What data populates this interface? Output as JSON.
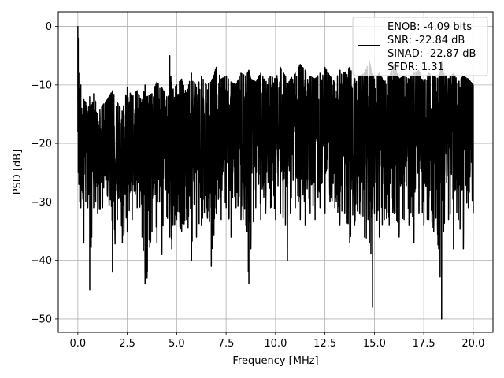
{
  "chart_data": {
    "type": "line",
    "title": "",
    "xlabel": "Frequency [MHz]",
    "ylabel": "PSD [dB]",
    "xlim": [
      -0.99,
      21.0
    ],
    "ylim": [
      -52.3,
      2.5
    ],
    "xticks": [
      0.0,
      2.5,
      5.0,
      7.5,
      10.0,
      12.5,
      15.0,
      17.5,
      20.0
    ],
    "xtick_labels": [
      "0.0",
      "2.5",
      "5.0",
      "7.5",
      "10.0",
      "12.5",
      "15.0",
      "17.5",
      "20.0"
    ],
    "yticks": [
      0,
      -10,
      -20,
      -30,
      -40,
      -50
    ],
    "ytick_labels": [
      "0",
      "−10",
      "−20",
      "−30",
      "−40",
      "−50"
    ],
    "grid": true,
    "legend_position": "top-right",
    "legend_entries": [
      "ENOB: -4.09 bits",
      "SNR: -22.84 dB",
      "SINAD: -22.87 dB",
      "SFDR: 1.31"
    ],
    "series": [
      {
        "color": "#000000",
        "x": [
          0.0,
          0.02,
          0.05,
          0.1,
          0.15,
          0.2,
          0.3,
          0.4,
          0.5,
          0.6,
          0.7,
          0.8,
          0.9,
          1.0,
          1.25,
          1.5,
          1.75,
          2.0,
          2.25,
          2.5,
          2.75,
          3.0,
          3.25,
          3.4,
          3.5,
          3.75,
          4.0,
          4.25,
          4.5,
          4.65,
          4.75,
          5.0,
          5.25,
          5.5,
          5.75,
          6.0,
          6.25,
          6.5,
          6.75,
          7.0,
          7.25,
          7.5,
          7.75,
          8.0,
          8.25,
          8.5,
          8.65,
          8.75,
          9.0,
          9.25,
          9.5,
          9.75,
          10.0,
          10.25,
          10.5,
          10.6,
          10.75,
          11.0,
          11.25,
          11.5,
          11.75,
          12.0,
          12.25,
          12.5,
          12.75,
          13.0,
          13.25,
          13.5,
          13.75,
          14.0,
          14.25,
          14.5,
          14.75,
          14.9,
          15.0,
          15.25,
          15.5,
          15.75,
          16.0,
          16.25,
          16.5,
          16.75,
          17.0,
          17.25,
          17.5,
          17.75,
          18.0,
          18.25,
          18.4,
          18.5,
          18.75,
          19.0,
          19.25,
          19.5,
          19.75,
          20.0
        ],
        "y_upper": [
          0.0,
          -2.0,
          -8.0,
          -12.0,
          -10.0,
          -14.0,
          -12.5,
          -13.0,
          -15.0,
          -12.0,
          -14.0,
          -11.5,
          -13.0,
          -15.0,
          -13.5,
          -12.5,
          -11.0,
          -13.0,
          -14.5,
          -10.5,
          -12.0,
          -11.0,
          -13.0,
          -10.0,
          -12.0,
          -11.5,
          -9.5,
          -10.5,
          -12.0,
          -5.0,
          -11.0,
          -10.0,
          -9.0,
          -11.5,
          -8.0,
          -10.5,
          -8.5,
          -10.0,
          -9.5,
          -7.0,
          -9.0,
          -8.5,
          -9.5,
          -10.0,
          -8.0,
          -8.5,
          -7.5,
          -9.0,
          -9.5,
          -8.0,
          -9.5,
          -8.5,
          -9.0,
          -7.0,
          -8.5,
          -10.0,
          -9.0,
          -8.0,
          -6.5,
          -7.5,
          -8.5,
          -9.0,
          -8.0,
          -7.0,
          -8.5,
          -9.5,
          -7.5,
          -8.0,
          -7.0,
          -9.0,
          -8.5,
          -8.0,
          -6.0,
          -8.0,
          -9.0,
          -8.0,
          -9.5,
          -8.5,
          -6.5,
          -9.0,
          -8.5,
          -9.0,
          -8.0,
          -7.5,
          -9.5,
          -8.0,
          -8.5,
          -9.0,
          -6.0,
          -8.0,
          -9.0,
          -8.0,
          -9.5,
          -8.5,
          -9.0,
          -10.0
        ],
        "y_lower": [
          -18.0,
          -25.0,
          -27.0,
          -30.0,
          -31.0,
          -28.0,
          -37.0,
          -30.0,
          -31.0,
          -45.0,
          -36.0,
          -31.0,
          -30.0,
          -32.0,
          -31.0,
          -29.0,
          -42.0,
          -33.0,
          -37.0,
          -35.0,
          -33.0,
          -31.0,
          -36.0,
          -44.0,
          -43.0,
          -35.0,
          -37.0,
          -39.0,
          -32.5,
          -36.0,
          -38.0,
          -33.0,
          -35.0,
          -33.0,
          -40.0,
          -36.0,
          -34.0,
          -31.0,
          -41.0,
          -32.0,
          -33.0,
          -31.0,
          -36.0,
          -31.0,
          -33.0,
          -34.0,
          -44.0,
          -38.0,
          -31.0,
          -33.0,
          -32.0,
          -31.0,
          -33.0,
          -32.0,
          -34.0,
          -40.0,
          -32.0,
          -31.0,
          -33.0,
          -34.0,
          -32.0,
          -33.0,
          -31.0,
          -32.0,
          -30.0,
          -31.0,
          -34.0,
          -32.0,
          -37.0,
          -34.0,
          -32.0,
          -36.0,
          -37.0,
          -48.0,
          -32.0,
          -36.0,
          -33.0,
          -34.0,
          -32.0,
          -36.0,
          -33.0,
          -34.0,
          -37.0,
          -32.0,
          -34.0,
          -33.0,
          -35.0,
          -38.0,
          -50.0,
          -35.0,
          -33.0,
          -38.0,
          -33.0,
          -38.0,
          -31.0,
          -32.0
        ],
        "y_mid": [
          -10.0,
          -14.0,
          -16.0,
          -20.0,
          -19.0,
          -21.0,
          -22.0,
          -20.0,
          -21.0,
          -22.0,
          -21.0,
          -20.0,
          -21.0,
          -22.0,
          -21.0,
          -20.0,
          -22.0,
          -21.0,
          -22.0,
          -21.0,
          -20.0,
          -21.0,
          -22.0,
          -21.0,
          -20.0,
          -21.0,
          -20.0,
          -21.0,
          -20.0,
          -19.0,
          -21.0,
          -20.0,
          -19.0,
          -20.0,
          -19.0,
          -20.0,
          -19.0,
          -20.0,
          -19.0,
          -18.0,
          -19.0,
          -19.0,
          -20.0,
          -19.0,
          -18.0,
          -19.0,
          -20.0,
          -19.0,
          -18.0,
          -19.0,
          -18.0,
          -19.0,
          -18.0,
          -17.0,
          -18.0,
          -19.0,
          -18.0,
          -17.0,
          -18.0,
          -19.0,
          -18.0,
          -17.0,
          -18.0,
          -17.0,
          -18.0,
          -19.0,
          -18.0,
          -17.0,
          -18.0,
          -19.0,
          -18.0,
          -17.0,
          -18.0,
          -19.0,
          -18.0,
          -17.0,
          -18.0,
          -19.0,
          -18.0,
          -17.0,
          -18.0,
          -19.0,
          -18.0,
          -17.0,
          -18.0,
          -19.0,
          -18.0,
          -17.0,
          -19.0,
          -18.0,
          -17.0,
          -18.0,
          -19.0,
          -18.0,
          -17.0,
          -18.0
        ]
      }
    ]
  }
}
